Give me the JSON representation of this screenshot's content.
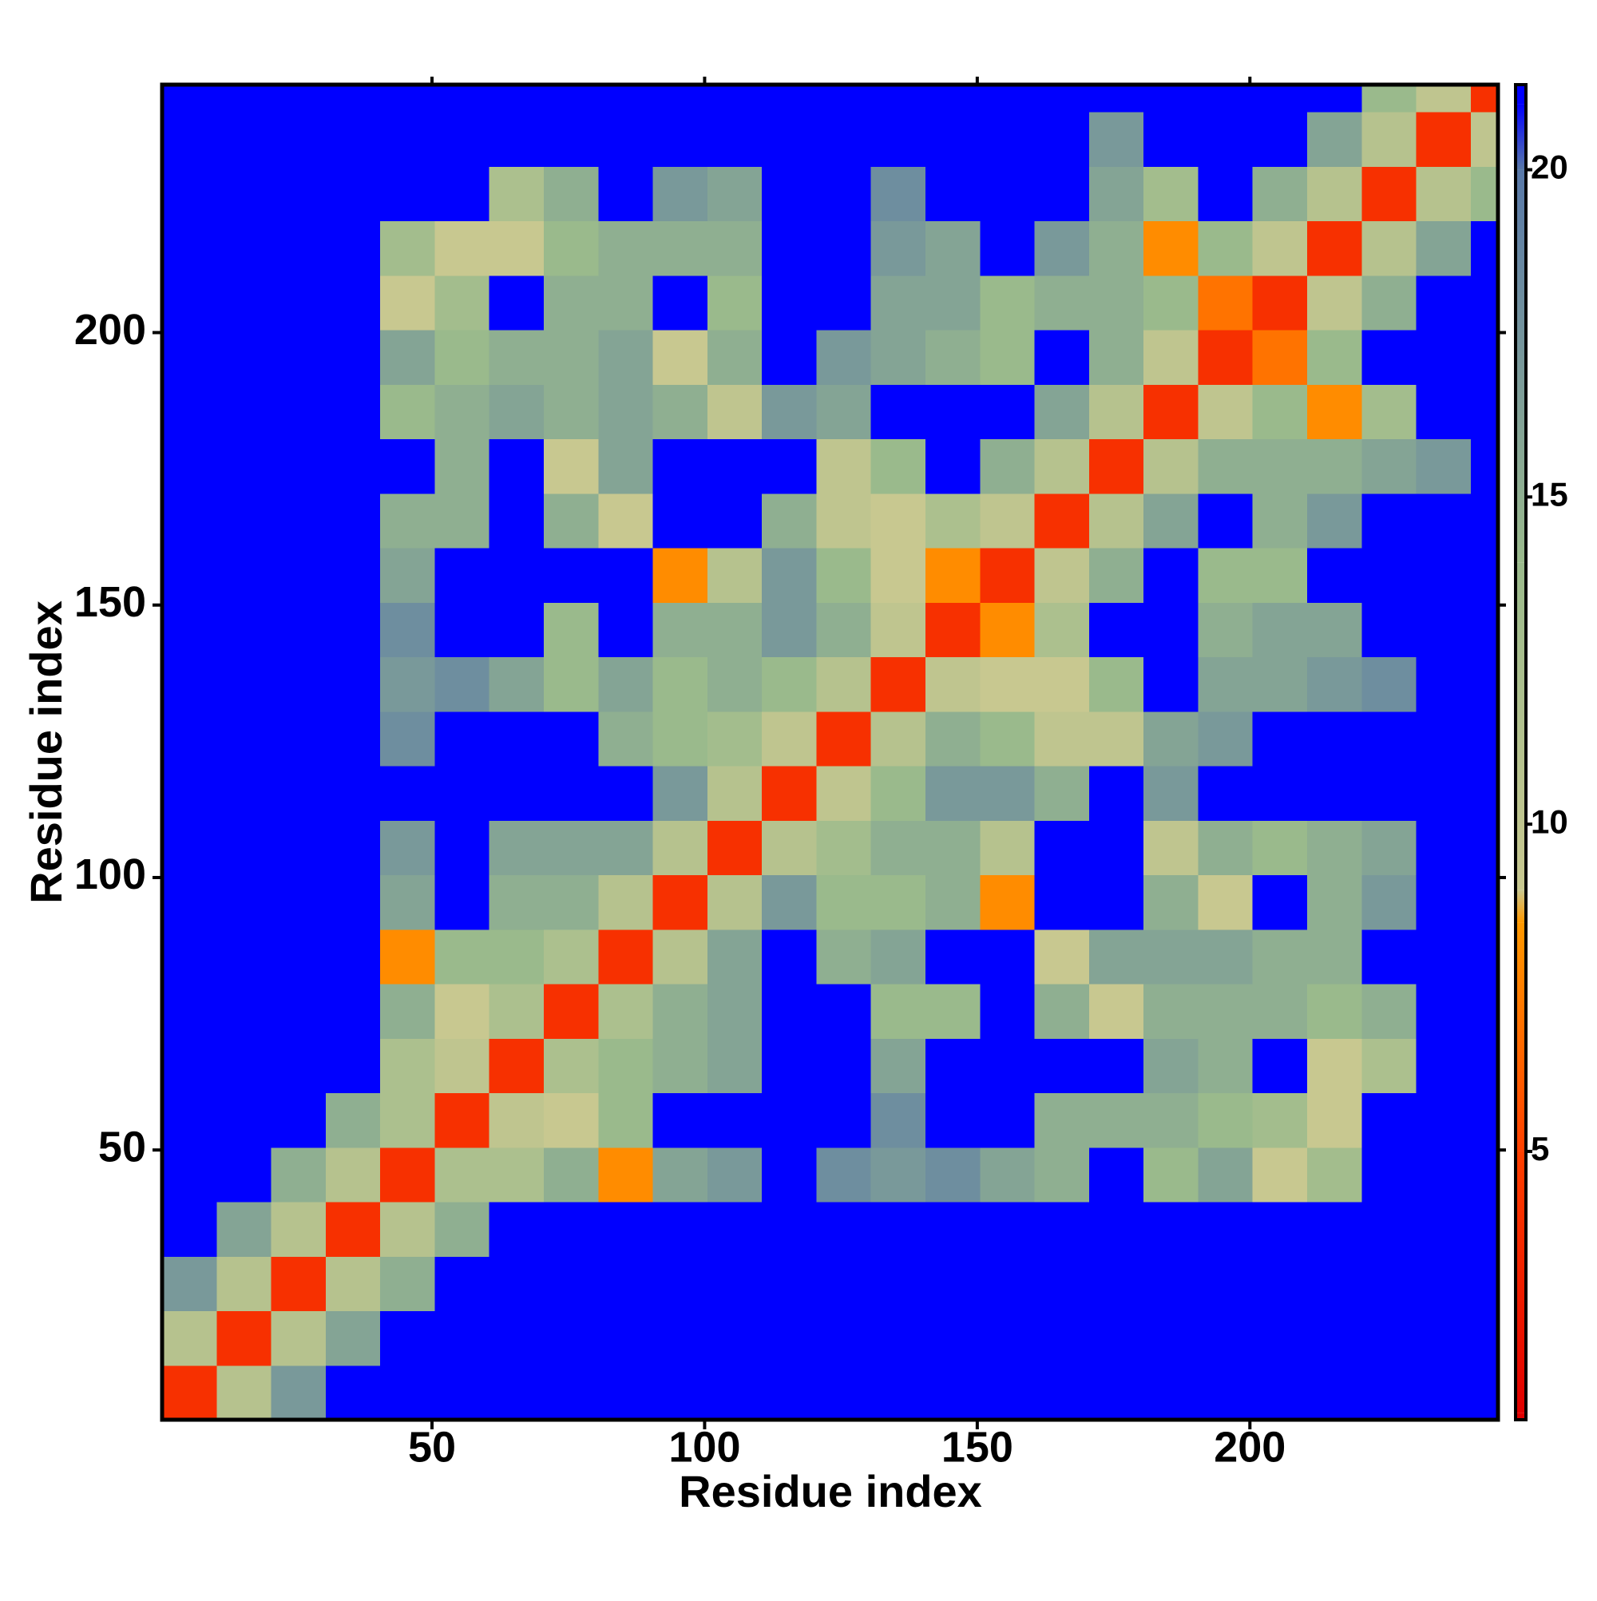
{
  "chart_data": {
    "type": "heatmap",
    "xlabel": "Residue index",
    "ylabel": "Residue index",
    "bins": [
      0.5,
      10.5,
      20.5,
      30.5,
      40.5,
      50.5,
      60.5,
      70.5,
      80.5,
      90.5,
      100.5,
      110.5,
      120.5,
      130.5,
      140.5,
      150.5,
      160.5,
      170.5,
      180.5,
      190.5,
      200.5,
      210.5,
      220.5,
      230.5,
      240.5,
      245.5
    ],
    "xlim": [
      0.5,
      245.5
    ],
    "ylim": [
      0.5,
      245.5
    ],
    "xticks": [
      50,
      100,
      150,
      200
    ],
    "yticks": [
      50,
      100,
      150,
      200
    ],
    "zlim": [
      0.9,
      21.3
    ],
    "zticks": [
      5,
      10,
      15,
      20
    ],
    "colorscale": [
      [
        1,
        "#e00000"
      ],
      [
        5,
        "#ff4000"
      ],
      [
        8.5,
        "#ff9900"
      ],
      [
        9,
        "#c8c890"
      ],
      [
        14,
        "#9aba8c"
      ],
      [
        20,
        "#5878a8"
      ],
      [
        21,
        "#0000ff"
      ]
    ],
    "z": [
      [
        4,
        11,
        17,
        21,
        21,
        21,
        21,
        21,
        21,
        21,
        21,
        21,
        21,
        21,
        21,
        21,
        21,
        21,
        21,
        21,
        21,
        21,
        21,
        21,
        21
      ],
      [
        11,
        4,
        11,
        16,
        21,
        21,
        21,
        21,
        21,
        21,
        21,
        21,
        21,
        21,
        21,
        21,
        21,
        21,
        21,
        21,
        21,
        21,
        21,
        21,
        21
      ],
      [
        17,
        11,
        4,
        11,
        15,
        21,
        21,
        21,
        21,
        21,
        21,
        21,
        21,
        21,
        21,
        21,
        21,
        21,
        21,
        21,
        21,
        21,
        21,
        21,
        21
      ],
      [
        21,
        16,
        11,
        4,
        11,
        15,
        21,
        21,
        21,
        21,
        21,
        21,
        21,
        21,
        21,
        21,
        21,
        21,
        21,
        21,
        21,
        21,
        21,
        21,
        21
      ],
      [
        21,
        21,
        15,
        11,
        4,
        12,
        12,
        15,
        8,
        16,
        17,
        21,
        18,
        17,
        18,
        16,
        15,
        21,
        14,
        16,
        9,
        13,
        21,
        21,
        21
      ],
      [
        21,
        21,
        21,
        15,
        12,
        4,
        10,
        9,
        14,
        21,
        21,
        21,
        21,
        18,
        21,
        21,
        15,
        15,
        15,
        14,
        13,
        9,
        21,
        21,
        21
      ],
      [
        21,
        21,
        21,
        21,
        12,
        10,
        4,
        12,
        14,
        15,
        16,
        21,
        21,
        16,
        21,
        21,
        21,
        21,
        16,
        15,
        21,
        9,
        12,
        21,
        21
      ],
      [
        21,
        21,
        21,
        21,
        15,
        9,
        12,
        4,
        12,
        15,
        16,
        21,
        21,
        14,
        14,
        21,
        15,
        9,
        15,
        15,
        15,
        14,
        15,
        21,
        21
      ],
      [
        21,
        21,
        21,
        21,
        8,
        14,
        14,
        12,
        4,
        11,
        16,
        21,
        15,
        16,
        21,
        21,
        9,
        16,
        16,
        16,
        15,
        15,
        21,
        21,
        21
      ],
      [
        21,
        21,
        21,
        21,
        16,
        21,
        15,
        15,
        11,
        4,
        11,
        17,
        14,
        14,
        15,
        8,
        21,
        21,
        15,
        9,
        21,
        15,
        17,
        21,
        21
      ],
      [
        21,
        21,
        21,
        21,
        17,
        21,
        16,
        16,
        16,
        11,
        4,
        11,
        13,
        15,
        15,
        11,
        21,
        21,
        10,
        15,
        14,
        15,
        16,
        21,
        21
      ],
      [
        21,
        21,
        21,
        21,
        21,
        21,
        21,
        21,
        21,
        17,
        11,
        4,
        10,
        14,
        17,
        17,
        15,
        21,
        17,
        21,
        21,
        21,
        21,
        21,
        21
      ],
      [
        21,
        21,
        21,
        21,
        18,
        21,
        21,
        21,
        15,
        14,
        13,
        10,
        4,
        11,
        15,
        14,
        10,
        10,
        16,
        17,
        21,
        21,
        21,
        21,
        21
      ],
      [
        21,
        21,
        21,
        21,
        17,
        18,
        16,
        14,
        16,
        14,
        15,
        14,
        11,
        4,
        10,
        9,
        9,
        14,
        21,
        16,
        16,
        17,
        18,
        21,
        21
      ],
      [
        21,
        21,
        21,
        21,
        18,
        21,
        21,
        14,
        21,
        15,
        15,
        17,
        15,
        10,
        4,
        8,
        12,
        21,
        21,
        15,
        16,
        16,
        21,
        21,
        21
      ],
      [
        21,
        21,
        21,
        21,
        16,
        21,
        21,
        21,
        21,
        8,
        11,
        17,
        14,
        9,
        8,
        4,
        10,
        15,
        21,
        14,
        14,
        21,
        21,
        21,
        21
      ],
      [
        21,
        21,
        21,
        21,
        15,
        15,
        21,
        15,
        9,
        21,
        21,
        15,
        10,
        9,
        12,
        10,
        4,
        11,
        16,
        21,
        15,
        17,
        21,
        21,
        21
      ],
      [
        21,
        21,
        21,
        21,
        21,
        15,
        21,
        9,
        16,
        21,
        21,
        21,
        10,
        14,
        21,
        15,
        11,
        4,
        11,
        15,
        15,
        15,
        16,
        17,
        21
      ],
      [
        21,
        21,
        21,
        21,
        14,
        15,
        16,
        15,
        16,
        15,
        10,
        17,
        16,
        21,
        21,
        21,
        16,
        11,
        4,
        10,
        14,
        8,
        13,
        21,
        21
      ],
      [
        21,
        21,
        21,
        21,
        16,
        14,
        15,
        15,
        16,
        9,
        15,
        21,
        17,
        16,
        15,
        14,
        21,
        15,
        10,
        4,
        7,
        14,
        21,
        21,
        21
      ],
      [
        21,
        21,
        21,
        21,
        9,
        13,
        21,
        15,
        15,
        21,
        14,
        21,
        21,
        16,
        16,
        14,
        15,
        15,
        14,
        7,
        4,
        10,
        15,
        21,
        21
      ],
      [
        21,
        21,
        21,
        21,
        13,
        9,
        9,
        14,
        15,
        15,
        15,
        21,
        21,
        17,
        16,
        21,
        17,
        15,
        8,
        14,
        10,
        4,
        11,
        16,
        21
      ],
      [
        21,
        21,
        21,
        21,
        21,
        21,
        12,
        15,
        21,
        17,
        16,
        21,
        21,
        18,
        21,
        21,
        21,
        16,
        13,
        21,
        15,
        11,
        4,
        11,
        14
      ],
      [
        21,
        21,
        21,
        21,
        21,
        21,
        21,
        21,
        21,
        21,
        21,
        21,
        21,
        21,
        21,
        21,
        21,
        17,
        21,
        21,
        21,
        16,
        11,
        4,
        10
      ],
      [
        21,
        21,
        21,
        21,
        21,
        21,
        21,
        21,
        21,
        21,
        21,
        21,
        21,
        21,
        21,
        21,
        21,
        21,
        21,
        21,
        21,
        21,
        14,
        10,
        4
      ]
    ]
  }
}
